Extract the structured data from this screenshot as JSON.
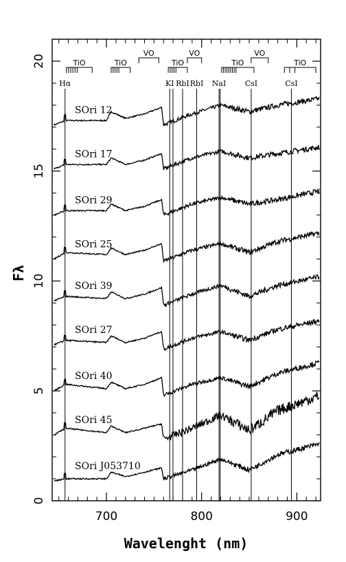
{
  "chart_data": {
    "type": "line",
    "xlabel": "Wavelenght (nm)",
    "ylabel": "Fλ",
    "xlim": [
      643,
      925
    ],
    "ylim": [
      0,
      21
    ],
    "xticks": [
      700,
      800,
      900
    ],
    "yticks": [
      0,
      5,
      10,
      15,
      20
    ],
    "grid": false,
    "series": [
      {
        "name": "SOri 12",
        "x": [
          645,
          657,
          700,
          705,
          720,
          740,
          758,
          760,
          790,
          820,
          850,
          880,
          925
        ],
        "values": [
          17.1,
          17.3,
          17.3,
          17.7,
          17.4,
          17.6,
          17.9,
          17.1,
          17.6,
          18.0,
          17.7,
          18.0,
          18.3
        ]
      },
      {
        "name": "SOri 17",
        "x": [
          645,
          657,
          700,
          705,
          720,
          740,
          758,
          760,
          790,
          820,
          850,
          880,
          925
        ],
        "values": [
          15.1,
          15.3,
          15.3,
          15.6,
          15.3,
          15.5,
          15.8,
          15.1,
          15.6,
          15.9,
          15.6,
          15.8,
          16.1
        ]
      },
      {
        "name": "SOri 29",
        "x": [
          645,
          657,
          700,
          705,
          720,
          740,
          758,
          760,
          790,
          820,
          850,
          880,
          925
        ],
        "values": [
          13.0,
          13.2,
          13.2,
          13.5,
          13.2,
          13.4,
          13.7,
          13.0,
          13.5,
          13.8,
          13.5,
          13.7,
          14.1
        ]
      },
      {
        "name": "SOri 25",
        "x": [
          645,
          657,
          700,
          705,
          720,
          740,
          758,
          760,
          790,
          820,
          850,
          880,
          925
        ],
        "values": [
          11.0,
          11.3,
          11.2,
          11.5,
          11.2,
          11.4,
          11.7,
          10.9,
          11.4,
          11.7,
          11.3,
          11.8,
          12.2
        ]
      },
      {
        "name": "SOri 39",
        "x": [
          645,
          657,
          700,
          705,
          720,
          740,
          758,
          760,
          790,
          820,
          850,
          880,
          925
        ],
        "values": [
          9.1,
          9.3,
          9.2,
          9.5,
          9.2,
          9.4,
          9.7,
          8.9,
          9.4,
          9.8,
          9.3,
          9.8,
          10.2
        ]
      },
      {
        "name": "SOri 27",
        "x": [
          645,
          657,
          700,
          705,
          720,
          740,
          758,
          760,
          790,
          820,
          850,
          880,
          925
        ],
        "values": [
          7.1,
          7.3,
          7.2,
          7.5,
          7.2,
          7.4,
          7.7,
          6.9,
          7.4,
          7.7,
          7.3,
          7.8,
          8.2
        ]
      },
      {
        "name": "SOri 40",
        "x": [
          645,
          657,
          700,
          705,
          720,
          740,
          758,
          760,
          790,
          820,
          850,
          880,
          925
        ],
        "values": [
          5.0,
          5.3,
          5.1,
          5.4,
          5.1,
          5.3,
          5.6,
          4.8,
          5.3,
          5.6,
          5.2,
          5.8,
          6.3
        ]
      },
      {
        "name": "SOri 45",
        "x": [
          645,
          657,
          700,
          705,
          720,
          740,
          758,
          760,
          790,
          820,
          850,
          880,
          925
        ],
        "values": [
          3.0,
          3.3,
          3.1,
          3.4,
          3.1,
          3.3,
          3.5,
          2.8,
          3.3,
          3.9,
          3.2,
          4.1,
          4.8
        ]
      },
      {
        "name": "SOri J053710",
        "x": [
          645,
          657,
          700,
          705,
          720,
          740,
          758,
          760,
          790,
          820,
          850,
          880,
          925
        ],
        "values": [
          0.9,
          1.0,
          1.0,
          1.3,
          1.1,
          1.3,
          1.5,
          1.0,
          1.4,
          1.9,
          1.4,
          2.1,
          2.6
        ]
      }
    ],
    "spectral_lines": [
      {
        "label": "Hα",
        "x": 656.5
      },
      {
        "label": "KI",
        "x": 766.5
      },
      {
        "label": "",
        "x": 769.9
      },
      {
        "label": "RbI",
        "x": 780.0
      },
      {
        "label": "RbI",
        "x": 794.8
      },
      {
        "label": "NaI",
        "x": 818.3
      },
      {
        "label": "",
        "x": 819.5
      },
      {
        "label": "CsI",
        "x": 852.1
      },
      {
        "label": "CsI",
        "x": 894.3
      }
    ],
    "molecular_bands": [
      {
        "label": "TiO",
        "x0": 658,
        "x1": 685,
        "row": "lower",
        "ticks": 6
      },
      {
        "label": "TiO",
        "x0": 705,
        "x1": 725,
        "row": "lower",
        "ticks": 5
      },
      {
        "label": "VO",
        "x0": 734,
        "x1": 755,
        "row": "upper",
        "ticks": 0
      },
      {
        "label": "TiO",
        "x0": 765,
        "x1": 785,
        "row": "lower",
        "ticks": 5
      },
      {
        "label": "VO",
        "x0": 785,
        "x1": 800,
        "row": "upper",
        "ticks": 0
      },
      {
        "label": "TiO",
        "x0": 821,
        "x1": 855,
        "row": "lower",
        "ticks": 9
      },
      {
        "label": "VO",
        "x0": 852,
        "x1": 870,
        "row": "upper",
        "ticks": 0
      },
      {
        "label": "TiO",
        "x0": 887,
        "x1": 920,
        "row": "lower",
        "ticks": 3
      }
    ]
  }
}
